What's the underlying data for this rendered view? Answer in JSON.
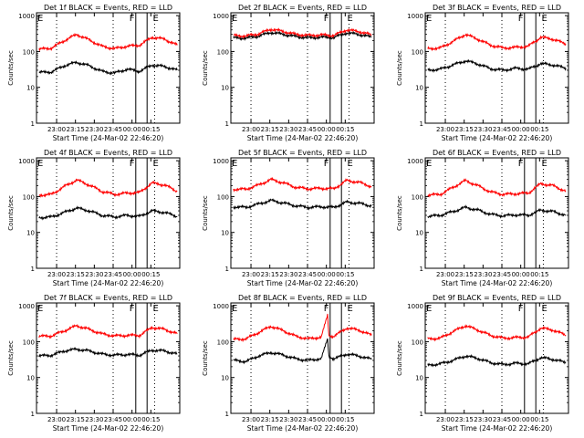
{
  "chart_data": [
    {
      "type": "line",
      "title": "Det 1f BLACK = Events, RED = LLD",
      "ylabel": "Counts/sec",
      "xlabel": "Start Time (24-Mar-02 22:46:20)",
      "x_tick_labels": [
        "23:00",
        "23:15",
        "23:30",
        "23:45",
        "00:00",
        "00:15"
      ],
      "y_tick_labels": [
        "1",
        "10",
        "100",
        "1000"
      ],
      "ylim": [
        1,
        1200
      ],
      "yscale": "log",
      "markers": [
        "F",
        "E"
      ],
      "series": [
        {
          "name": "Events",
          "color": "#000000",
          "x": [
            0,
            10,
            20,
            30,
            40,
            50,
            60,
            70,
            80,
            90,
            100,
            110
          ],
          "y": [
            26,
            27,
            40,
            50,
            40,
            28,
            25,
            32,
            28,
            42,
            38,
            30
          ]
        },
        {
          "name": "LLD",
          "color": "#ff0000",
          "x": [
            0,
            10,
            20,
            30,
            40,
            50,
            60,
            70,
            80,
            90,
            100,
            110
          ],
          "y": [
            115,
            125,
            200,
            300,
            210,
            140,
            120,
            140,
            150,
            250,
            220,
            150
          ]
        }
      ]
    },
    {
      "type": "line",
      "title": "Det 2f BLACK = Events, RED = LLD",
      "ylabel": "Counts/sec",
      "xlabel": "Start Time (24-Mar-02 22:46:20)",
      "x_tick_labels": [
        "23:00",
        "23:15",
        "23:30",
        "23:45",
        "00:00",
        "00:15"
      ],
      "y_tick_labels": [
        "1",
        "10",
        "100",
        "1000"
      ],
      "ylim": [
        1,
        1200
      ],
      "yscale": "log",
      "markers": [
        "F",
        "E"
      ],
      "series": [
        {
          "name": "Events",
          "color": "#000000",
          "x": [
            0,
            10,
            20,
            30,
            40,
            50,
            60,
            70,
            80,
            90,
            100,
            110
          ],
          "y": [
            240,
            235,
            270,
            340,
            300,
            260,
            240,
            250,
            245,
            330,
            300,
            250
          ]
        },
        {
          "name": "LLD",
          "color": "#ff0000",
          "x": [
            0,
            10,
            20,
            30,
            40,
            50,
            60,
            70,
            80,
            90,
            100,
            110
          ],
          "y": [
            280,
            270,
            310,
            420,
            360,
            300,
            280,
            290,
            280,
            400,
            360,
            290
          ]
        }
      ]
    },
    {
      "type": "line",
      "title": "Det 3f BLACK = Events, RED = LLD",
      "ylabel": "Counts/sec",
      "xlabel": "Start Time (24-Mar-02 22:46:20)",
      "x_tick_labels": [
        "23:00",
        "23:15",
        "23:30",
        "23:45",
        "00:00",
        "00:15"
      ],
      "y_tick_labels": [
        "1",
        "10",
        "100",
        "1000"
      ],
      "ylim": [
        1,
        1200
      ],
      "yscale": "log",
      "markers": [
        "F",
        "E"
      ],
      "series": [
        {
          "name": "Events",
          "color": "#000000",
          "x": [
            0,
            10,
            20,
            30,
            40,
            50,
            60,
            70,
            80,
            90,
            100,
            110
          ],
          "y": [
            30,
            32,
            42,
            55,
            45,
            33,
            30,
            34,
            32,
            46,
            42,
            34
          ]
        },
        {
          "name": "LLD",
          "color": "#ff0000",
          "x": [
            0,
            10,
            20,
            30,
            40,
            50,
            60,
            70,
            80,
            90,
            100,
            110
          ],
          "y": [
            120,
            125,
            190,
            300,
            220,
            150,
            125,
            130,
            140,
            250,
            220,
            160
          ]
        }
      ]
    },
    {
      "type": "line",
      "title": "Det 4f BLACK = Events, RED = LLD",
      "ylabel": "Counts/sec",
      "xlabel": "Start Time (24-Mar-02 22:46:20)",
      "x_tick_labels": [
        "23:00",
        "23:15",
        "23:30",
        "23:45",
        "00:00",
        "00:15"
      ],
      "y_tick_labels": [
        "1",
        "10",
        "100",
        "1000"
      ],
      "ylim": [
        1,
        1200
      ],
      "yscale": "log",
      "markers": [
        "F",
        "E"
      ],
      "series": [
        {
          "name": "Events",
          "color": "#000000",
          "x": [
            0,
            10,
            20,
            30,
            40,
            50,
            60,
            70,
            80,
            90,
            100,
            110
          ],
          "y": [
            26,
            27,
            36,
            48,
            40,
            30,
            27,
            30,
            28,
            40,
            36,
            28
          ]
        },
        {
          "name": "LLD",
          "color": "#ff0000",
          "x": [
            0,
            10,
            20,
            30,
            40,
            50,
            60,
            70,
            80,
            90,
            100,
            110
          ],
          "y": [
            110,
            115,
            190,
            290,
            210,
            140,
            115,
            125,
            130,
            240,
            210,
            140
          ]
        }
      ]
    },
    {
      "type": "line",
      "title": "Det 5f BLACK = Events, RED = LLD",
      "ylabel": "Counts/sec",
      "xlabel": "Start Time (24-Mar-02 22:46:20)",
      "x_tick_labels": [
        "23:00",
        "23:15",
        "23:30",
        "23:45",
        "00:00",
        "00:15"
      ],
      "y_tick_labels": [
        "1",
        "10",
        "100",
        "1000"
      ],
      "ylim": [
        1,
        1200
      ],
      "yscale": "log",
      "markers": [
        "F",
        "E"
      ],
      "series": [
        {
          "name": "Events",
          "color": "#000000",
          "x": [
            0,
            10,
            20,
            30,
            40,
            50,
            60,
            70,
            80,
            90,
            100,
            110
          ],
          "y": [
            52,
            50,
            62,
            78,
            66,
            55,
            50,
            52,
            50,
            70,
            65,
            55
          ]
        },
        {
          "name": "LLD",
          "color": "#ff0000",
          "x": [
            0,
            10,
            20,
            30,
            40,
            50,
            60,
            70,
            80,
            90,
            100,
            110
          ],
          "y": [
            160,
            160,
            210,
            300,
            240,
            180,
            165,
            170,
            165,
            280,
            250,
            190
          ]
        }
      ]
    },
    {
      "type": "line",
      "title": "Det 6f BLACK = Events, RED = LLD",
      "ylabel": "Counts/sec",
      "xlabel": "Start Time (24-Mar-02 22:46:20)",
      "x_tick_labels": [
        "23:00",
        "23:15",
        "23:30",
        "23:45",
        "00:00",
        "00:15"
      ],
      "y_tick_labels": [
        "1",
        "10",
        "100",
        "1000"
      ],
      "ylim": [
        1,
        1200
      ],
      "yscale": "log",
      "markers": [
        "F",
        "E"
      ],
      "series": [
        {
          "name": "Events",
          "color": "#000000",
          "x": [
            0,
            10,
            20,
            30,
            40,
            50,
            60,
            70,
            80,
            90,
            100,
            110
          ],
          "y": [
            28,
            30,
            38,
            50,
            42,
            32,
            29,
            31,
            30,
            42,
            38,
            30
          ]
        },
        {
          "name": "LLD",
          "color": "#ff0000",
          "x": [
            0,
            10,
            20,
            30,
            40,
            50,
            60,
            70,
            80,
            90,
            100,
            110
          ],
          "y": [
            110,
            115,
            180,
            280,
            200,
            135,
            115,
            120,
            125,
            230,
            200,
            140
          ]
        }
      ]
    },
    {
      "type": "line",
      "title": "Det 7f BLACK = Events, RED = LLD",
      "ylabel": "Counts/sec",
      "xlabel": "Start Time (24-Mar-02 22:46:20)",
      "x_tick_labels": [
        "23:00",
        "23:15",
        "23:30",
        "23:45",
        "00:00",
        "00:15"
      ],
      "y_tick_labels": [
        "1",
        "10",
        "100",
        "1000"
      ],
      "ylim": [
        1,
        1200
      ],
      "yscale": "log",
      "markers": [
        "F",
        "E"
      ],
      "series": [
        {
          "name": "Events",
          "color": "#000000",
          "x": [
            0,
            10,
            20,
            30,
            40,
            50,
            60,
            70,
            80,
            90,
            100,
            110
          ],
          "y": [
            40,
            42,
            55,
            62,
            55,
            45,
            42,
            44,
            42,
            58,
            55,
            45
          ]
        },
        {
          "name": "LLD",
          "color": "#ff0000",
          "x": [
            0,
            10,
            20,
            30,
            40,
            50,
            60,
            70,
            80,
            90,
            100,
            110
          ],
          "y": [
            140,
            145,
            200,
            280,
            220,
            165,
            145,
            150,
            150,
            250,
            220,
            165
          ]
        }
      ]
    },
    {
      "type": "line",
      "title": "Det 8f BLACK = Events, RED = LLD",
      "ylabel": "Counts/sec",
      "xlabel": "Start Time (24-Mar-02 22:46:20)",
      "x_tick_labels": [
        "23:00",
        "23:15",
        "23:30",
        "23:45",
        "00:00",
        "00:15"
      ],
      "y_tick_labels": [
        "1",
        "10",
        "100",
        "1000"
      ],
      "ylim": [
        1,
        1200
      ],
      "yscale": "log",
      "markers": [
        "F",
        "E"
      ],
      "series": [
        {
          "name": "Events",
          "color": "#000000",
          "x": [
            0,
            10,
            20,
            30,
            40,
            50,
            60,
            70,
            75,
            76,
            80,
            90,
            100,
            110
          ],
          "y": [
            30,
            28,
            40,
            50,
            42,
            33,
            30,
            34,
            120,
            40,
            33,
            45,
            40,
            32
          ]
        },
        {
          "name": "LLD",
          "color": "#ff0000",
          "x": [
            0,
            10,
            20,
            30,
            40,
            50,
            60,
            70,
            75,
            76,
            80,
            90,
            100,
            110
          ],
          "y": [
            115,
            120,
            180,
            270,
            200,
            140,
            120,
            135,
            560,
            150,
            140,
            240,
            210,
            150
          ]
        }
      ]
    },
    {
      "type": "line",
      "title": "Det 9f BLACK = Events, RED = LLD",
      "ylabel": "Counts/sec",
      "xlabel": "Start Time (24-Mar-02 22:46:20)",
      "x_tick_labels": [
        "23:00",
        "23:15",
        "23:30",
        "23:45",
        "00:00",
        "00:15"
      ],
      "y_tick_labels": [
        "1",
        "10",
        "100",
        "1000"
      ],
      "ylim": [
        1,
        1200
      ],
      "yscale": "log",
      "markers": [
        "F",
        "E"
      ],
      "series": [
        {
          "name": "Events",
          "color": "#000000",
          "x": [
            0,
            10,
            20,
            30,
            40,
            50,
            60,
            70,
            80,
            90,
            100,
            110
          ],
          "y": [
            22,
            24,
            30,
            40,
            34,
            26,
            23,
            25,
            24,
            36,
            32,
            26
          ]
        },
        {
          "name": "LLD",
          "color": "#ff0000",
          "x": [
            0,
            10,
            20,
            30,
            40,
            50,
            60,
            70,
            80,
            90,
            100,
            110
          ],
          "y": [
            120,
            125,
            190,
            280,
            210,
            150,
            125,
            130,
            135,
            240,
            210,
            150
          ]
        }
      ]
    }
  ]
}
